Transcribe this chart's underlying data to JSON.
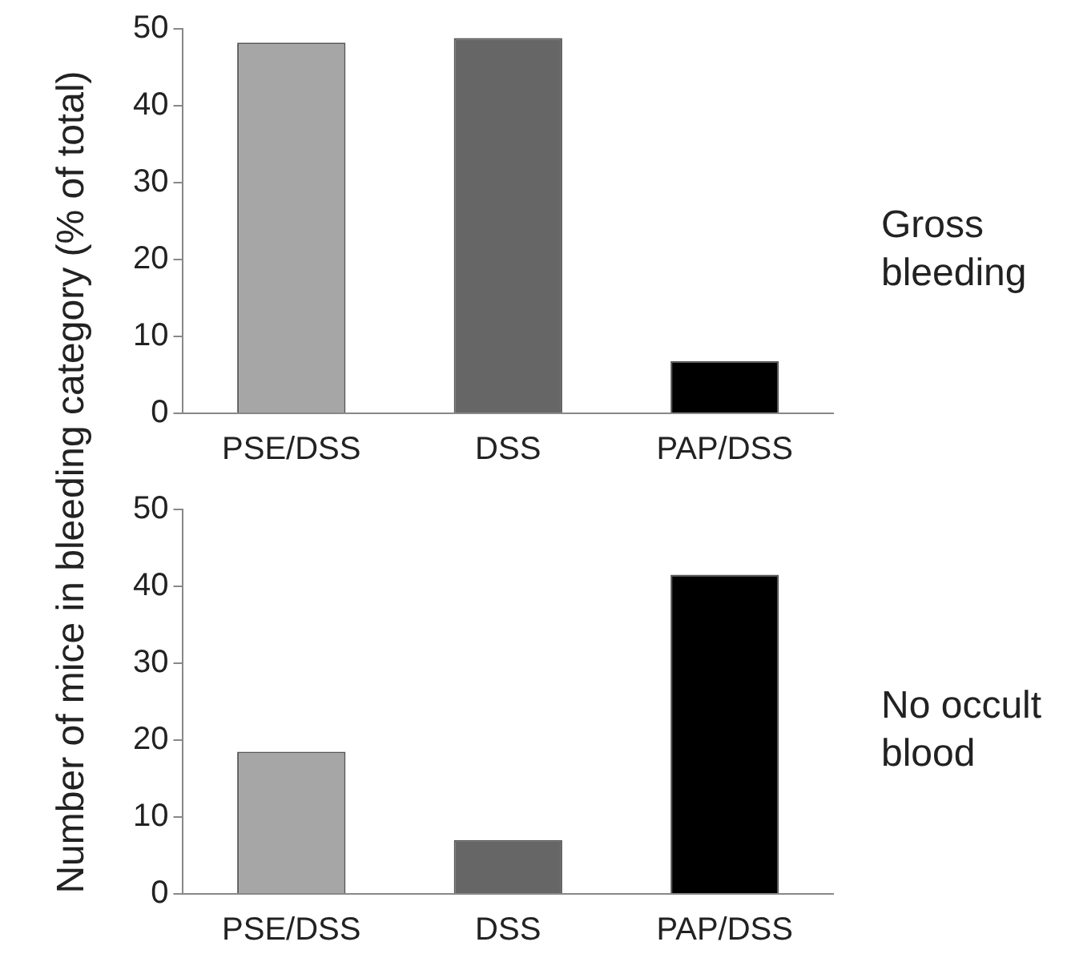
{
  "chart_data": [
    {
      "type": "bar",
      "ylabel": "Number of mice in bleeding category (% of total)",
      "categories": [
        "PSE/DSS",
        "DSS",
        "PAP/DSS"
      ],
      "values": [
        48.2,
        48.8,
        6.8
      ],
      "colors": [
        "#a6a6a6",
        "#666666",
        "#000000"
      ],
      "ylim": [
        0,
        50
      ],
      "yticks": [
        0,
        10,
        20,
        30,
        40,
        50
      ],
      "annotations": [
        "Gross bleeding"
      ]
    },
    {
      "type": "bar",
      "categories": [
        "PSE/DSS",
        "DSS",
        "PAP/DSS"
      ],
      "values": [
        18.5,
        7,
        41.5
      ],
      "colors": [
        "#a6a6a6",
        "#666666",
        "#000000"
      ],
      "ylim": [
        0,
        50
      ],
      "yticks": [
        0,
        10,
        20,
        30,
        40,
        50
      ],
      "annotations": [
        "No occult blood"
      ]
    }
  ]
}
